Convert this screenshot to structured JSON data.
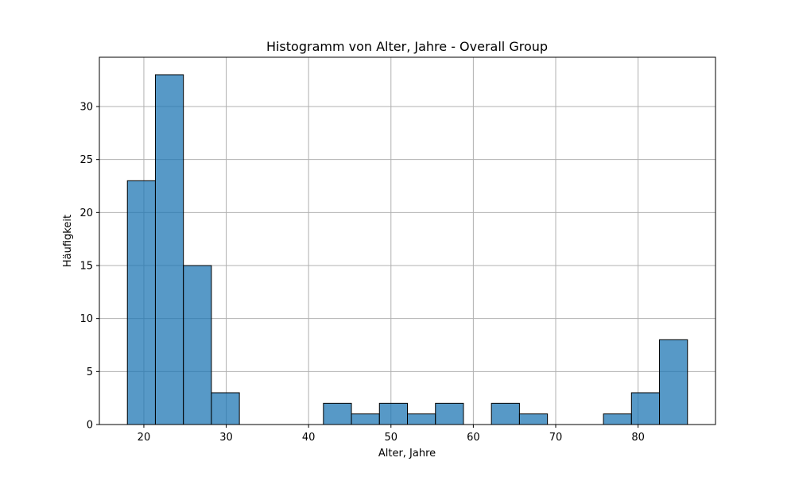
{
  "chart_data": {
    "type": "bar",
    "title": "Histogramm von Alter, Jahre - Overall Group",
    "xlabel": "Alter, Jahre",
    "ylabel": "Häufigkeit",
    "xlim": [
      14.6,
      89.4
    ],
    "ylim": [
      0,
      34.65
    ],
    "xticks": [
      20,
      30,
      40,
      50,
      60,
      70,
      80
    ],
    "yticks": [
      0,
      5,
      10,
      15,
      20,
      25,
      30
    ],
    "grid": true,
    "bar_color": "#1f77b4",
    "edge_color": "#000000",
    "bins": [
      {
        "x0": 18.0,
        "x1": 21.4,
        "count": 23
      },
      {
        "x0": 21.4,
        "x1": 24.8,
        "count": 33
      },
      {
        "x0": 24.8,
        "x1": 28.2,
        "count": 15
      },
      {
        "x0": 28.2,
        "x1": 31.6,
        "count": 3
      },
      {
        "x0": 31.6,
        "x1": 35.0,
        "count": 0
      },
      {
        "x0": 35.0,
        "x1": 38.4,
        "count": 0
      },
      {
        "x0": 38.4,
        "x1": 41.8,
        "count": 0
      },
      {
        "x0": 41.8,
        "x1": 45.2,
        "count": 2
      },
      {
        "x0": 45.2,
        "x1": 48.6,
        "count": 1
      },
      {
        "x0": 48.6,
        "x1": 52.0,
        "count": 2
      },
      {
        "x0": 52.0,
        "x1": 55.4,
        "count": 1
      },
      {
        "x0": 55.4,
        "x1": 58.8,
        "count": 2
      },
      {
        "x0": 58.8,
        "x1": 62.2,
        "count": 0
      },
      {
        "x0": 62.2,
        "x1": 65.6,
        "count": 2
      },
      {
        "x0": 65.6,
        "x1": 69.0,
        "count": 1
      },
      {
        "x0": 69.0,
        "x1": 72.4,
        "count": 0
      },
      {
        "x0": 72.4,
        "x1": 75.8,
        "count": 0
      },
      {
        "x0": 75.8,
        "x1": 79.2,
        "count": 1
      },
      {
        "x0": 79.2,
        "x1": 82.6,
        "count": 3
      },
      {
        "x0": 82.6,
        "x1": 86.0,
        "count": 8
      }
    ]
  }
}
